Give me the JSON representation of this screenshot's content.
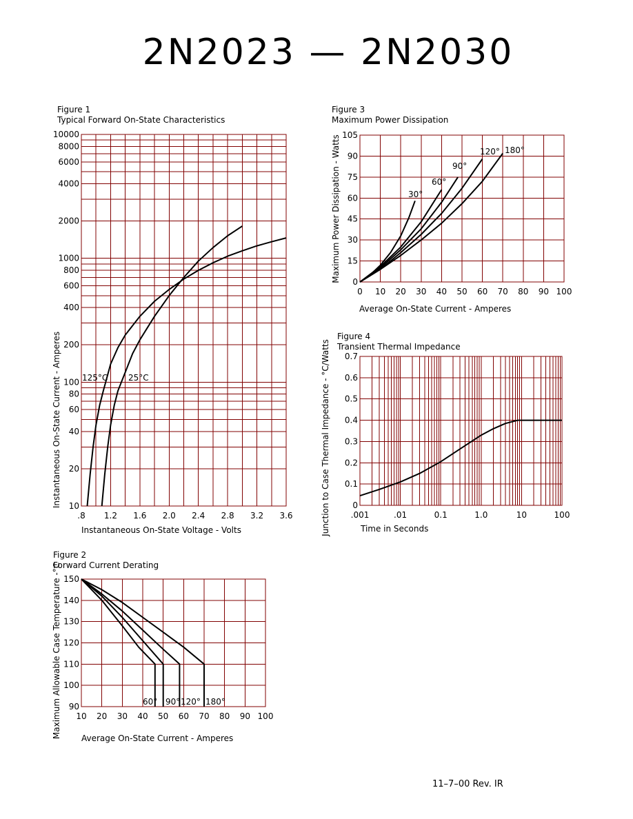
{
  "header": {
    "title": "2N2023 — 2N2030",
    "revision": "11–7–00   Rev. IR"
  },
  "chart_data": [
    {
      "id": "fig1",
      "type": "line",
      "figure_label": "Figure 1",
      "title": "Typical Forward On-State Characteristics",
      "xlabel": "Instantaneous On-State Voltage - Volts",
      "ylabel": "Instantaneous On-State Current - Amperes",
      "xlim": [
        0.8,
        3.6
      ],
      "ylim": [
        10,
        10000
      ],
      "yscale": "log",
      "grid": true,
      "x_ticks": [
        ".8",
        "1.2",
        "1.6",
        "2.0",
        "2.4",
        "2.8",
        "3.2",
        "3.6"
      ],
      "y_ticks": [
        "10",
        "20",
        "40",
        "60",
        "80",
        "100",
        "200",
        "400",
        "600",
        "800",
        "1000",
        "2000",
        "4000",
        "6000",
        "8000",
        "10000"
      ],
      "series": [
        {
          "name": "125°C",
          "x": [
            0.88,
            0.92,
            0.96,
            1.0,
            1.05,
            1.1,
            1.2,
            1.3,
            1.4,
            1.6,
            1.8,
            2.0,
            2.2,
            2.4,
            2.6,
            2.8,
            3.0,
            3.2,
            3.4,
            3.6
          ],
          "y": [
            10,
            18,
            30,
            45,
            65,
            85,
            140,
            190,
            240,
            340,
            450,
            560,
            680,
            800,
            920,
            1040,
            1150,
            1260,
            1360,
            1460
          ]
        },
        {
          "name": "25°C",
          "x": [
            1.08,
            1.12,
            1.16,
            1.2,
            1.25,
            1.3,
            1.4,
            1.5,
            1.6,
            1.8,
            2.0,
            2.2,
            2.4,
            2.6,
            2.8,
            3.0
          ],
          "y": [
            10,
            18,
            30,
            45,
            65,
            85,
            120,
            170,
            220,
            340,
            500,
            700,
            950,
            1220,
            1520,
            1820
          ]
        }
      ]
    },
    {
      "id": "fig2",
      "type": "line",
      "figure_label": "Figure 2",
      "title": "Forward Current Derating",
      "xlabel": "Average On-State Current - Amperes",
      "ylabel": "Maximum Allowable Case Temperature -°C",
      "xlim": [
        10,
        100
      ],
      "ylim": [
        90,
        150
      ],
      "grid": true,
      "x_ticks": [
        "10",
        "20",
        "30",
        "40",
        "50",
        "60",
        "70",
        "80",
        "90",
        "100"
      ],
      "y_ticks": [
        "90",
        "100",
        "110",
        "120",
        "130",
        "140",
        "150"
      ],
      "series": [
        {
          "name": "60°",
          "x": [
            10,
            20,
            30,
            38,
            46,
            46
          ],
          "y": [
            150,
            140,
            128,
            118,
            110,
            90
          ]
        },
        {
          "name": "90°",
          "x": [
            10,
            20,
            30,
            40,
            50,
            50
          ],
          "y": [
            150,
            142,
            132,
            121,
            110,
            90
          ]
        },
        {
          "name": "120°",
          "x": [
            10,
            20,
            30,
            40,
            50,
            58,
            58
          ],
          "y": [
            150,
            143,
            135,
            126,
            117,
            110,
            90
          ]
        },
        {
          "name": "180°",
          "x": [
            10,
            20,
            30,
            40,
            50,
            60,
            70,
            70
          ],
          "y": [
            150,
            145,
            139,
            132,
            125,
            118,
            110,
            90
          ]
        }
      ]
    },
    {
      "id": "fig3",
      "type": "line",
      "figure_label": "Figure 3",
      "title": "Maximum Power Dissipation",
      "xlabel": "Average On-State Current - Amperes",
      "ylabel": "Maximum Power Dissipation - Watts",
      "xlim": [
        0,
        100
      ],
      "ylim": [
        0,
        105
      ],
      "grid": true,
      "x_ticks": [
        "0",
        "10",
        "20",
        "30",
        "40",
        "50",
        "60",
        "70",
        "80",
        "90",
        "100"
      ],
      "y_ticks": [
        "0",
        "15",
        "30",
        "45",
        "60",
        "75",
        "90",
        "105"
      ],
      "series": [
        {
          "name": "30°",
          "x": [
            0,
            5,
            10,
            15,
            20,
            24,
            27
          ],
          "y": [
            0,
            5,
            12,
            21,
            33,
            46,
            58
          ]
        },
        {
          "name": "60°",
          "x": [
            0,
            10,
            20,
            30,
            40
          ],
          "y": [
            0,
            11,
            25,
            43,
            66
          ]
        },
        {
          "name": "90°",
          "x": [
            0,
            10,
            20,
            30,
            40,
            48
          ],
          "y": [
            0,
            10,
            23,
            38,
            57,
            75
          ]
        },
        {
          "name": "120°",
          "x": [
            0,
            10,
            20,
            30,
            40,
            50,
            60
          ],
          "y": [
            0,
            9,
            21,
            34,
            49,
            67,
            88
          ]
        },
        {
          "name": "180°",
          "x": [
            0,
            10,
            20,
            30,
            40,
            50,
            60,
            70
          ],
          "y": [
            0,
            9,
            19,
            30,
            42,
            56,
            72,
            92
          ]
        }
      ]
    },
    {
      "id": "fig4",
      "type": "line",
      "figure_label": "Figure 4",
      "title": "Transient Thermal Impedance",
      "xlabel": "Time in Seconds",
      "ylabel": "Junction to Case Thermal Impedance - °C/Watts",
      "xlim": [
        0.001,
        100
      ],
      "xscale": "log",
      "ylim": [
        0,
        0.7
      ],
      "grid": true,
      "x_ticks": [
        ".001",
        ".01",
        "0.1",
        "1.0",
        "10",
        "100"
      ],
      "y_ticks": [
        "0",
        "0.1",
        "0.2",
        "0.3",
        "0.4",
        "0.5",
        "0.6",
        "0.7"
      ],
      "series": [
        {
          "name": "",
          "x": [
            0.001,
            0.003,
            0.01,
            0.03,
            0.1,
            0.3,
            1,
            2,
            4,
            8,
            10,
            30,
            100
          ],
          "y": [
            0.045,
            0.075,
            0.11,
            0.15,
            0.205,
            0.265,
            0.33,
            0.36,
            0.385,
            0.4,
            0.4,
            0.4,
            0.4
          ]
        }
      ]
    }
  ]
}
